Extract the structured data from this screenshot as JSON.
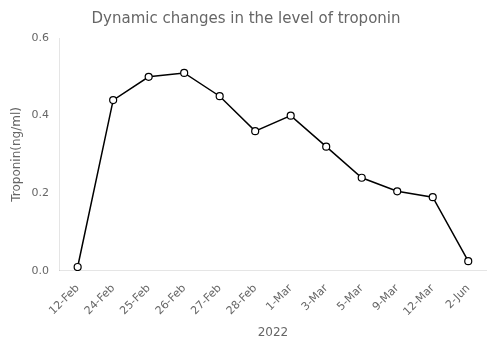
{
  "chart_data": {
    "type": "line",
    "title": "Dynamic changes in the level of troponin",
    "xlabel": "2022",
    "ylabel": "Troponin(ng/ml)",
    "categories": [
      "12-Feb",
      "24-Feb",
      "25-Feb",
      "26-Feb",
      "27-Feb",
      "28-Feb",
      "1-Mar",
      "3-Mar",
      "5-Mar",
      "9-Mar",
      "12-Mar",
      "2-Jun"
    ],
    "values": [
      0.01,
      0.44,
      0.5,
      0.51,
      0.45,
      0.36,
      0.4,
      0.32,
      0.24,
      0.205,
      0.19,
      0.025
    ],
    "color": "#000000",
    "marker": "circle",
    "ylim": [
      0.0,
      0.6
    ],
    "yticks": [
      {
        "value": 0.0,
        "label": "0.0"
      },
      0.2,
      0.4,
      0.6
    ],
    "grid": false
  }
}
